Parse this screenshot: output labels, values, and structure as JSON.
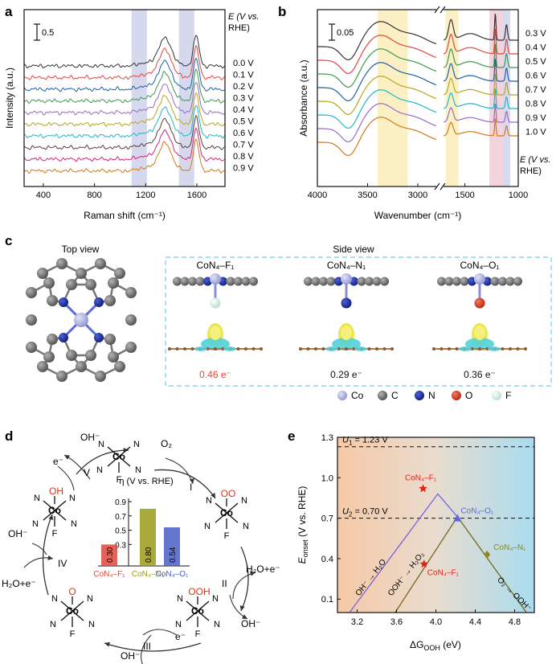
{
  "panel_labels": {
    "a": "a",
    "b": "b",
    "c": "c",
    "d": "d",
    "e": "e"
  },
  "chart_a": {
    "type": "line",
    "ylabel": "Intensity (a.u.)",
    "xlabel": "Raman shift (cm⁻¹)",
    "xlim": [
      250,
      1820
    ],
    "x_ticks": [
      "400",
      "800",
      "1200",
      "1600"
    ],
    "x_tick_values": [
      400,
      800,
      1200,
      1600
    ],
    "scale_bar": "0.5",
    "legend_title_1": "E (V vs.",
    "legend_title_2": "RHE)",
    "highlight_bands": [
      {
        "from": 1090,
        "to": 1210,
        "color": "#d6d9ee"
      },
      {
        "from": 1460,
        "to": 1580,
        "color": "#d6d9ee"
      }
    ],
    "series": [
      {
        "name": "0.0 V",
        "color": "#333333"
      },
      {
        "name": "0.1 V",
        "color": "#e0463c"
      },
      {
        "name": "0.2 V",
        "color": "#1f5fa6"
      },
      {
        "name": "0.3 V",
        "color": "#3d9a4d"
      },
      {
        "name": "0.4 V",
        "color": "#9a6ac2"
      },
      {
        "name": "0.5 V",
        "color": "#b7a51e"
      },
      {
        "name": "0.6 V",
        "color": "#1fb7c6"
      },
      {
        "name": "0.7 V",
        "color": "#5a3d3a"
      },
      {
        "name": "0.8 V",
        "color": "#d6237f"
      },
      {
        "name": "0.9 V",
        "color": "#d07a1a"
      }
    ]
  },
  "chart_b": {
    "type": "line",
    "ylabel": "Absorbance (a.u.)",
    "xlabel": "Wavenumber (cm⁻¹)",
    "x_ticks": [
      "4000",
      "3500",
      "3000",
      "1500",
      "1000"
    ],
    "x_tick_values": [
      4000,
      3500,
      3000,
      1500,
      1000
    ],
    "axis_break": [
      2800,
      1700
    ],
    "scale_bar": "0.05",
    "legend_title_1": "E (V vs.",
    "legend_title_2": "RHE)",
    "highlight_bands": [
      {
        "from": 3400,
        "to": 3100,
        "color": "#fbf0c4"
      },
      {
        "from": 1680,
        "to": 1560,
        "color": "#fbf0c4"
      },
      {
        "from": 1270,
        "to": 1150,
        "color": "#f3d3dc"
      },
      {
        "from": 1150,
        "to": 1075,
        "color": "#d9daf0"
      }
    ],
    "series": [
      {
        "name": "0.3 V",
        "color": "#333333"
      },
      {
        "name": "0.4 V",
        "color": "#e0463c"
      },
      {
        "name": "0.5 V",
        "color": "#3d9a4d"
      },
      {
        "name": "0.6 V",
        "color": "#1f5fa6"
      },
      {
        "name": "0.7 V",
        "color": "#b7a51e"
      },
      {
        "name": "0.8 V",
        "color": "#1fb7c6"
      },
      {
        "name": "0.9 V",
        "color": "#9a6ac2"
      },
      {
        "name": "1.0 V",
        "color": "#d07a1a"
      }
    ]
  },
  "panel_c": {
    "top_view": "Top view",
    "side_view": "Side view",
    "structures": [
      {
        "name": "CoN₄–F₁",
        "charge": "0.46 e⁻",
        "axial_color": "#d9efe9",
        "charge_color": "#e0463c"
      },
      {
        "name": "CoN₄–N₁",
        "charge": "0.29 e⁻",
        "axial_color": "#1c2f9e",
        "charge_color": "#111111"
      },
      {
        "name": "CoN₄–O₁",
        "charge": "0.36 e⁻",
        "axial_color": "#d2361b",
        "charge_color": "#111111"
      }
    ],
    "legend": [
      {
        "label": "Co",
        "color": "#9fa5dc"
      },
      {
        "label": "C",
        "color": "#6a6a6a"
      },
      {
        "label": "N",
        "color": "#1c2f9e"
      },
      {
        "label": "O",
        "color": "#d2361b"
      },
      {
        "label": "F",
        "color": "#d9efe9"
      }
    ]
  },
  "panel_d": {
    "steps": [
      "I",
      "II",
      "III",
      "IV",
      "V"
    ],
    "species": {
      "o2": "O₂",
      "h2o_e_right": "H₂O+e⁻",
      "oh_right": "OH⁻",
      "e_bottom": "e⁻",
      "oh_bottom": "OH⁻",
      "h2o_e_left": "H₂O+e⁻",
      "oh_left": "OH⁻",
      "e_top": "e⁻",
      "oh_top": "OH⁻"
    },
    "adsorbates": {
      "oo": "OO",
      "ooh": "OOH",
      "o": "O",
      "oh": "OH"
    },
    "atoms": {
      "co": "Co",
      "n": "N",
      "f": "F"
    },
    "inset": {
      "type": "bar",
      "ylabel": "η (V vs. RHE)",
      "categories": [
        "CoN₄–F₁",
        "CoN₄–N₁",
        "CoN₄–O₁"
      ],
      "values": [
        0.3,
        0.8,
        0.54
      ],
      "labels": [
        "0.30",
        "0.80",
        "0.54"
      ],
      "colors": [
        "#e0463c",
        "#9a9a1a",
        "#4a5fc4"
      ],
      "ylim": [
        0.0,
        0.9
      ],
      "y_ticks": [
        "0.3",
        "0.5",
        "0.7",
        "0.9"
      ],
      "y_tick_values": [
        0.3,
        0.5,
        0.7,
        0.9
      ]
    }
  },
  "chart_e": {
    "type": "scatter",
    "ylabel": "E_onset (V vs. RHE)",
    "ylabel_main": "E",
    "ylabel_sub": "onset",
    "ylabel_rest": " (V vs. RHE)",
    "xlabel": "ΔG_OOH (eV)",
    "xlabel_main": "ΔG",
    "xlabel_sub": "OOH",
    "xlabel_rest": " (eV)",
    "xlim": [
      3.0,
      5.0
    ],
    "ylim": [
      0.0,
      1.3
    ],
    "x_ticks": [
      "3.2",
      "3.6",
      "4.0",
      "4.4",
      "4.8"
    ],
    "x_tick_values": [
      3.2,
      3.6,
      4.0,
      4.4,
      4.8
    ],
    "y_ticks": [
      "0.1",
      "0.4",
      "0.7",
      "1.0",
      "1.3"
    ],
    "y_tick_values": [
      0.1,
      0.4,
      0.7,
      1.0,
      1.3
    ],
    "hlines": [
      {
        "label_main": "U",
        "label_sub": "1",
        "label_rest": " = 1.23 V",
        "y": 1.23
      },
      {
        "label_main": "U",
        "label_sub": "2",
        "label_rest": " = 0.70 V",
        "y": 0.7
      }
    ],
    "line_1": {
      "x": [
        3.0,
        4.02,
        4.22
      ],
      "y": [
        -0.12,
        0.88,
        0.71
      ],
      "color": "#7a62e0"
    },
    "line_2": {
      "x": [
        3.55,
        4.22,
        4.92
      ],
      "y": [
        -0.04,
        0.71,
        0.0
      ],
      "color": "#6f6a1e"
    },
    "line_labels": [
      {
        "text": "OH⁻ → H₂O",
        "x": 3.22,
        "y": 0.12,
        "angle": -52
      },
      {
        "text": "OOH⁻ → H₂O₂",
        "x": 3.55,
        "y": 0.12,
        "angle": -52
      },
      {
        "text": "O₂ → OOH⁻",
        "x": 4.62,
        "y": 0.24,
        "angle": 45
      }
    ],
    "points": [
      {
        "label": "CoN₄–F₁",
        "x": 3.87,
        "y": 0.92,
        "marker": "star",
        "color": "#e0221a"
      },
      {
        "label": "CoN₄–F₁",
        "x": 3.88,
        "y": 0.36,
        "marker": "star",
        "color": "#e0221a"
      },
      {
        "label": "CoN₄–O₁",
        "x": 4.22,
        "y": 0.7,
        "marker": "triangle",
        "color": "#5a6ad8"
      },
      {
        "label": "CoN₄–N₁",
        "x": 4.52,
        "y": 0.43,
        "marker": "diamond",
        "color": "#8a8a1e"
      }
    ]
  }
}
